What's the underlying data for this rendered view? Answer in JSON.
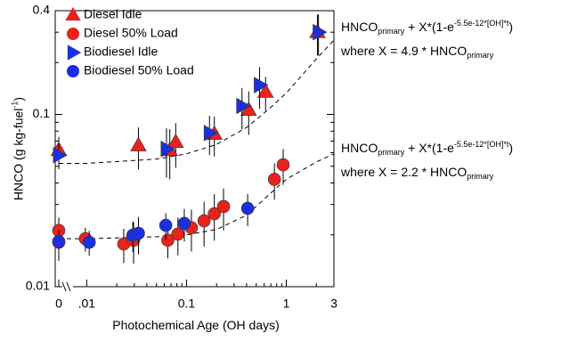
{
  "chart_data": {
    "type": "scatter",
    "xlabel": "Photochemical Age (OH days)",
    "ylabel": [
      {
        "text": "HNCO (g kg-fuel"
      },
      {
        "text": "-1",
        "sup": true
      },
      {
        "text": ")"
      }
    ],
    "xscale": "log",
    "yscale": "log",
    "xbreak": true,
    "xlim": [
      0.007,
      3
    ],
    "ylim": [
      0.01,
      0.4
    ],
    "xticks": [
      0,
      {
        "value": 0.01,
        "label": ".01"
      },
      0.1,
      1,
      3
    ],
    "yticks": [
      0.01,
      0.1,
      0.4
    ],
    "xminor_ticks": [
      0.02,
      0.03,
      0.04,
      0.05,
      0.06,
      0.07,
      0.08,
      0.09,
      0.2,
      0.3,
      0.4,
      0.5,
      0.6,
      0.7,
      0.8,
      0.9,
      2
    ],
    "yminor_ticks": [
      0.02,
      0.03,
      0.04,
      0.05,
      0.06,
      0.07,
      0.08,
      0.09,
      0.2,
      0.3
    ],
    "legend": "upper left",
    "series": [
      {
        "name": "Diesel Idle",
        "color": "#e8231c",
        "marker": "triangle",
        "x": [
          0,
          0.033,
          0.068,
          0.078,
          0.19,
          0.42,
          0.62,
          2.05
        ],
        "values": [
          0.062,
          0.066,
          0.062,
          0.069,
          0.077,
          0.106,
          0.135,
          0.3
        ],
        "errors": [
          0.012,
          0.018,
          0.02,
          0.02,
          0.02,
          0.03,
          0.03,
          0.08
        ]
      },
      {
        "name": "Diesel 50% Load",
        "color": "#e8231c",
        "marker": "circle",
        "x": [
          0,
          0,
          0.0097,
          0.0235,
          0.0295,
          0.065,
          0.082,
          0.112,
          0.15,
          0.19,
          0.235,
          0.76,
          0.93
        ],
        "values": [
          0.0212,
          0.0181,
          0.019,
          0.0177,
          0.0186,
          0.0186,
          0.0202,
          0.022,
          0.0241,
          0.0265,
          0.0292,
          0.042,
          0.051
        ],
        "errors": [
          0.004,
          0.004,
          0.003,
          0.004,
          0.005,
          0.004,
          0.005,
          0.006,
          0.007,
          0.008,
          0.008,
          0.01,
          0.012
        ]
      },
      {
        "name": "Biodiesel Idle",
        "color": "#1c2fe0",
        "marker": "triangle-right",
        "x": [
          0,
          0.063,
          0.17,
          0.36,
          0.54,
          2.1
        ],
        "values": [
          0.058,
          0.063,
          0.078,
          0.112,
          0.148,
          0.3
        ],
        "errors": [
          0.01,
          0.02,
          0.02,
          0.03,
          0.04,
          0.08
        ]
      },
      {
        "name": "Biodiesel 50% Load",
        "color": "#1c2fe0",
        "marker": "circle",
        "x": [
          0,
          0.0106,
          0.029,
          0.033,
          0.062,
          0.095,
          0.41
        ],
        "values": [
          0.0183,
          0.0181,
          0.0199,
          0.0204,
          0.0227,
          0.0233,
          0.0285
        ],
        "errors": [
          0.003,
          0.003,
          0.004,
          0.005,
          0.004,
          0.005,
          0.006
        ]
      }
    ],
    "fits": [
      {
        "x": [
          0,
          0.01,
          0.05,
          0.1,
          0.2,
          0.4,
          0.7,
          1,
          2,
          3
        ],
        "y": [
          0.052,
          0.052,
          0.055,
          0.059,
          0.067,
          0.084,
          0.11,
          0.133,
          0.21,
          0.27
        ]
      },
      {
        "x": [
          0,
          0.01,
          0.05,
          0.1,
          0.2,
          0.4,
          0.7,
          1,
          2,
          3
        ],
        "y": [
          0.019,
          0.019,
          0.0195,
          0.02,
          0.0215,
          0.026,
          0.035,
          0.042,
          0.053,
          0.059
        ]
      }
    ],
    "annotations": [
      [
        [
          {
            "text": "HNCO"
          },
          {
            "text": "primary",
            "sub": true
          },
          {
            "text": " + X*(1-e"
          },
          {
            "text": "-5.5e-12*[OH]*t",
            "sup": true
          },
          {
            "text": ")"
          }
        ],
        [
          {
            "text": "where X = 4.9 * HNCO"
          },
          {
            "text": "primary",
            "sub": true
          }
        ]
      ],
      [
        [
          {
            "text": "HNCO"
          },
          {
            "text": "primary",
            "sub": true
          },
          {
            "text": " + X*(1-e"
          },
          {
            "text": "-5.5e-12*[OH]*t",
            "sup": true
          },
          {
            "text": ")"
          }
        ],
        [
          {
            "text": "where X = 2.2 * HNCO"
          },
          {
            "text": "primary",
            "sub": true
          }
        ]
      ]
    ]
  }
}
